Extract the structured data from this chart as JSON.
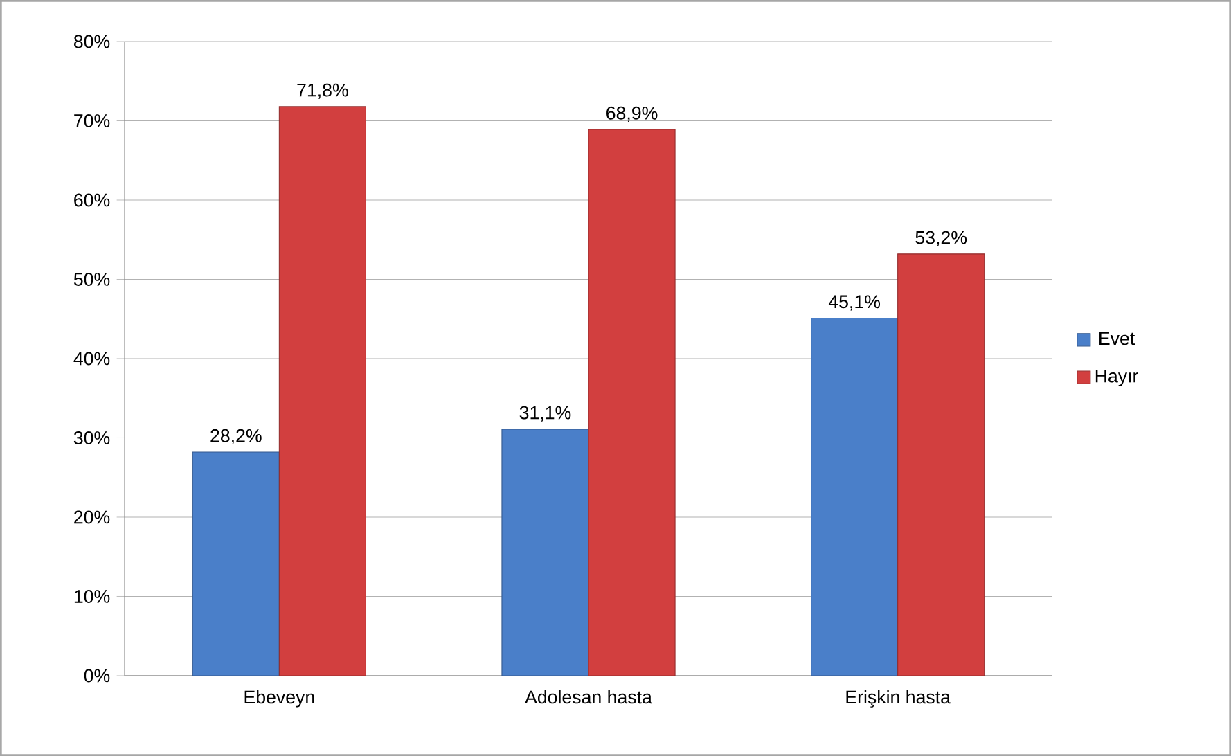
{
  "chart_data": {
    "type": "bar",
    "categories": [
      "Ebeveyn",
      "Adolesan hasta",
      "Erişkin hasta"
    ],
    "series": [
      {
        "name": "Evet",
        "color": "#4a7fc9",
        "values": [
          28.2,
          31.1,
          45.1
        ],
        "value_labels": [
          "28,2%",
          "31,1%",
          "45,1%"
        ]
      },
      {
        "name": "Hayır",
        "color": "#d23f3f",
        "values": [
          71.8,
          68.9,
          53.2
        ],
        "value_labels": [
          "71,8%",
          "68,9%",
          "53,2%"
        ]
      }
    ],
    "ylim": [
      0,
      80
    ],
    "yticks": [
      {
        "value": 0,
        "label": "0%"
      },
      {
        "value": 10,
        "label": "10%"
      },
      {
        "value": 20,
        "label": "20%"
      },
      {
        "value": 30,
        "label": "30%"
      },
      {
        "value": 40,
        "label": "40%"
      },
      {
        "value": 50,
        "label": "50%"
      },
      {
        "value": 60,
        "label": "60%"
      },
      {
        "value": 70,
        "label": "70%"
      },
      {
        "value": 80,
        "label": "80%"
      }
    ],
    "grid": "y",
    "legend": "right"
  }
}
